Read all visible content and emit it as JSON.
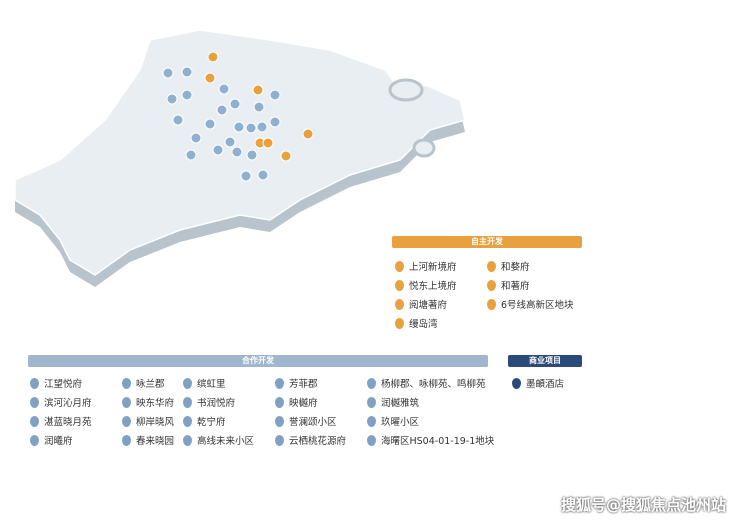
{
  "self_dev": {
    "title": "自主开发",
    "items": [
      "上河新境府",
      "和婺府",
      "悦东上境府",
      "和著府",
      "阅塘著府",
      "6号线高新区地块",
      "缦岛湾"
    ]
  },
  "cooperative": {
    "title": "合作开发",
    "columns": [
      [
        "江望悦府",
        "滨河沁月府",
        "湛蓝晓月苑",
        "润曦府"
      ],
      [
        "咏兰郡",
        "映东华府",
        "柳岸晓风",
        "春来晓园"
      ],
      [
        "缤虹里",
        "书润悦府",
        "乾宁府",
        "高线未来小区"
      ],
      [
        "芳菲郡",
        "映樾府",
        "誉澜颂小区",
        "云栖桃花源府"
      ],
      [
        "杨柳郡、咏柳苑、鸣柳苑",
        "润樾雅筑",
        "玖曜小区",
        "海曙区HS04-01-19-1地块"
      ]
    ]
  },
  "commercial": {
    "title": "商业项目",
    "items": [
      "墨頔酒店"
    ]
  },
  "watermark": "搜狐号@搜狐焦点池州站"
}
